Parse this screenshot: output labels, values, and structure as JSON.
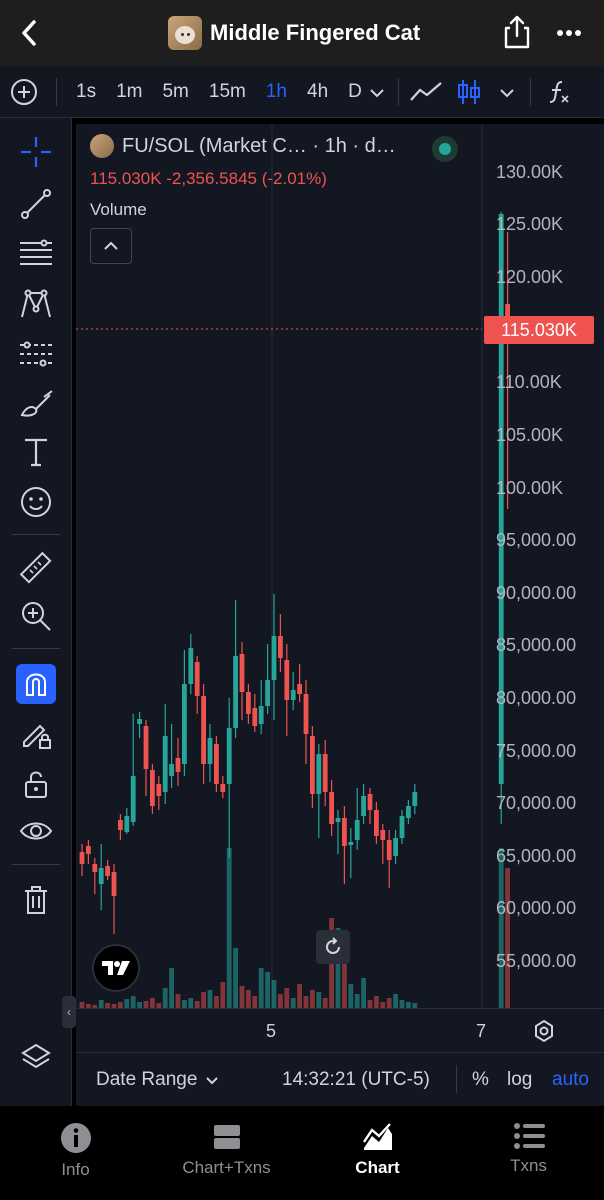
{
  "header": {
    "title": "Middle Fingered Cat",
    "back_icon": "chevron-left-icon",
    "share_icon": "share-icon",
    "more_icon": "more-icon"
  },
  "toolbar": {
    "intervals": [
      "1s",
      "1m",
      "5m",
      "15m",
      "1h",
      "4h",
      "D"
    ],
    "active_interval": "1h",
    "accent": "#2962ff"
  },
  "chart": {
    "symbol": "FU/SOL (Market C… · 1h · d…",
    "ohlc_line": "115.030K -2,356.5845 (-2.01%)",
    "volume_label": "Volume",
    "current_price_label": "115.030K",
    "y_axis_labels": [
      "130.00K",
      "125.00K",
      "120.00K",
      "115.03K",
      "110.00K",
      "105.00K",
      "100.00K",
      "95,000.00",
      "90,000.00",
      "85,000.00",
      "80,000.00",
      "75,000.00",
      "70,000.00",
      "65,000.00",
      "60,000.00",
      "55,000.00"
    ],
    "x_axis_labels": [
      "5",
      "7"
    ],
    "up_color": "#26a69a",
    "down_color": "#ef5350"
  },
  "bottom_bar": {
    "date_range": "Date Range",
    "clock": "14:32:21 (UTC-5)",
    "percent": "%",
    "log": "log",
    "auto": "auto"
  },
  "tabs": [
    {
      "label": "Info",
      "icon": "info-icon"
    },
    {
      "label": "Chart+Txns",
      "icon": "split-view-icon"
    },
    {
      "label": "Chart",
      "icon": "chart-icon"
    },
    {
      "label": "Txns",
      "icon": "list-icon"
    }
  ],
  "active_tab": "Chart"
}
